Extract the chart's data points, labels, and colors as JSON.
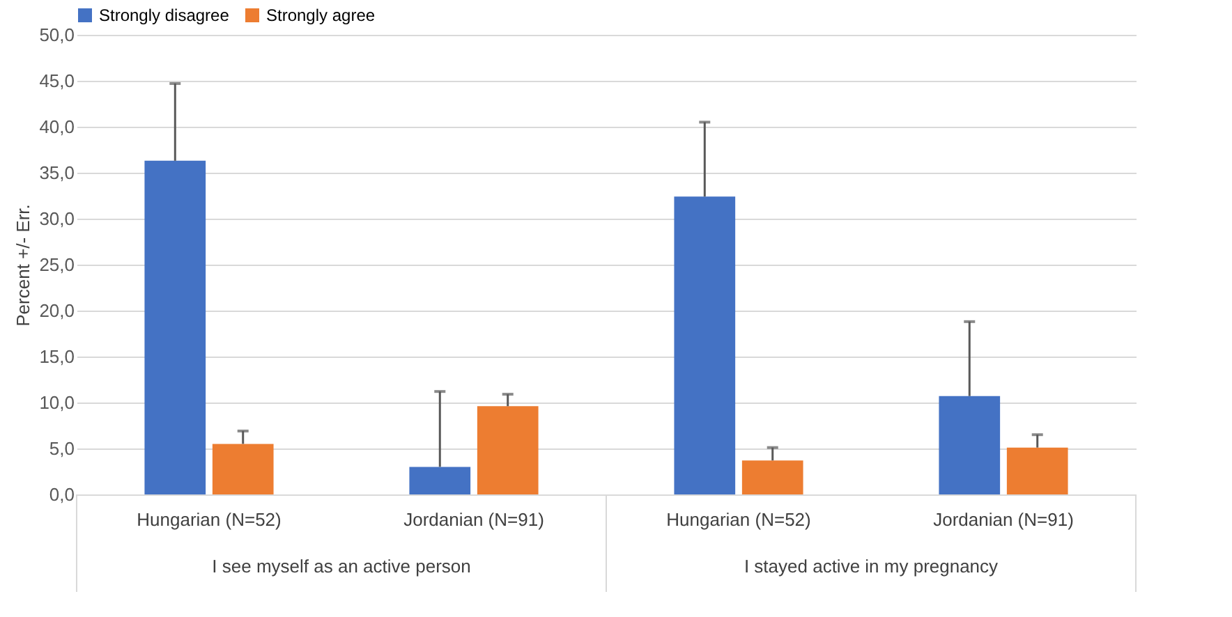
{
  "chart_data": {
    "type": "bar",
    "ylabel": "Percent +/- Err.",
    "categories": [
      "Hungarian (N=52)",
      "Jordanian (N=91)",
      "Hungarian (N=52)",
      "Jordanian (N=91)"
    ],
    "annotations": [
      "I see myself as an active person",
      "I stayed active in my pregnancy"
    ],
    "series": [
      {
        "name": "Strongly disagree",
        "color": "#4472c4",
        "values": [
          36.3,
          3.0,
          32.4,
          10.7
        ],
        "errors": [
          [
            36.3,
            44.7
          ],
          [
            3.0,
            11.2
          ],
          [
            32.4,
            40.5
          ],
          [
            10.7,
            18.8
          ]
        ]
      },
      {
        "name": "Strongly agree",
        "color": "#ed7d31",
        "values": [
          5.5,
          9.6,
          3.7,
          5.1
        ],
        "errors": [
          [
            5.5,
            6.9
          ],
          [
            9.6,
            10.9
          ],
          [
            3.7,
            5.1
          ],
          [
            5.1,
            6.5
          ]
        ]
      }
    ],
    "ylim": [
      0,
      50
    ],
    "yticks": [
      {
        "value": 0,
        "label": "0,0"
      },
      {
        "value": 5,
        "label": "5,0"
      },
      {
        "value": 10,
        "label": "10,0"
      },
      {
        "value": 15,
        "label": "15,0"
      },
      {
        "value": 20,
        "label": "20,0"
      },
      {
        "value": 25,
        "label": "25,0"
      },
      {
        "value": 30,
        "label": "30,0"
      },
      {
        "value": 35,
        "label": "35,0"
      },
      {
        "value": 40,
        "label": "40,0"
      },
      {
        "value": 45,
        "label": "45,0"
      },
      {
        "value": 50,
        "label": "50,0"
      }
    ],
    "grid": "y",
    "legend": "top"
  }
}
